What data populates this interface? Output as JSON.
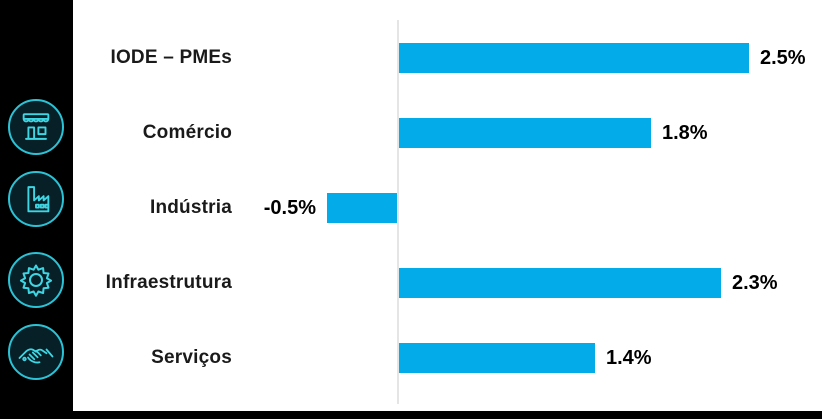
{
  "sidebar": {
    "background": "#000000",
    "icons": [
      {
        "name": "storefront-icon"
      },
      {
        "name": "factory-icon"
      },
      {
        "name": "gear-icon"
      },
      {
        "name": "handshake-icon"
      }
    ],
    "icon_ring_color": "#2bc3d5",
    "icon_glyph_color": "#3fd6e3"
  },
  "chart_data": {
    "type": "bar",
    "orientation": "horizontal",
    "categories": [
      "IODE – PMEs",
      "Comércio",
      "Indústria",
      "Infraestrutura",
      "Serviços"
    ],
    "values": [
      2.5,
      1.8,
      -0.5,
      2.3,
      1.4
    ],
    "value_labels": [
      "2.5%",
      "1.8%",
      "-0.5%",
      "2.3%",
      "1.4%"
    ],
    "unit": "%",
    "title": "",
    "xlabel": "",
    "ylabel": "",
    "xlim": [
      -0.6,
      3.0
    ],
    "grid": false,
    "legend": false,
    "bar_color": "#03ace9",
    "axis_line_color": "#e5e5e5",
    "label_color": "#1a1a1a",
    "value_label_color": "#000000"
  }
}
